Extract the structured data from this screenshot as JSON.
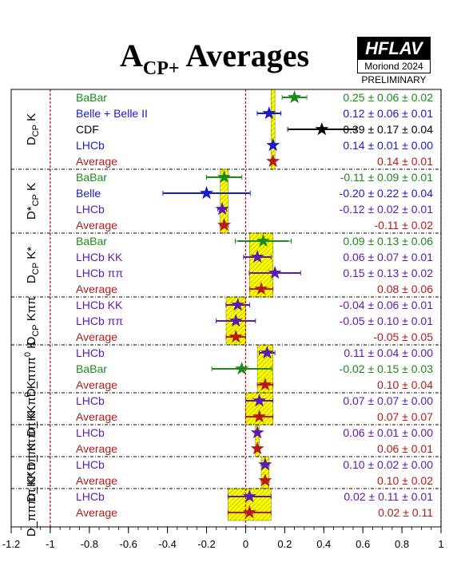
{
  "title": {
    "main": "A",
    "sub": "CP+",
    "rest": " Averages"
  },
  "logo": {
    "name": "HFLAV",
    "conference": "Moriond 2024",
    "status": "PRELIMINARY"
  },
  "colors": {
    "babar": "#1a8a1a",
    "belle": "#1a1acc",
    "cdf": "#000000",
    "lhcb": "#5a1ab4",
    "average": "#b41a1a",
    "band": "#ffff00",
    "band_hatch": "#8a8a00",
    "ref_line": "#cc0000"
  },
  "chart_data": {
    "type": "scatter",
    "xlim": [
      -1.2,
      1.0
    ],
    "xticks": [
      "-1.2",
      "-1",
      "-0.8",
      "-0.6",
      "-0.4",
      "-0.2",
      "0",
      "0.2",
      "0.4",
      "0.6",
      "0.8",
      "1"
    ],
    "reference_lines": [
      -1,
      0,
      1
    ],
    "groups": [
      {
        "label": "D",
        "label_sub": "CP",
        "label_rest": " K",
        "average": {
          "value": 0.14,
          "error": 0.01
        },
        "entries": [
          {
            "name": "BaBar",
            "color": "babar",
            "value": 0.25,
            "stat": 0.06,
            "syst": 0.02,
            "text": "0.25 ± 0.06 ± 0.02"
          },
          {
            "name": "Belle + Belle II",
            "color": "belle",
            "value": 0.12,
            "stat": 0.06,
            "syst": 0.01,
            "text": "0.12 ± 0.06 ± 0.01"
          },
          {
            "name": "CDF",
            "color": "cdf",
            "value": 0.39,
            "stat": 0.17,
            "syst": 0.04,
            "text": "0.39 ± 0.17 ± 0.04"
          },
          {
            "name": "LHCb",
            "color": "belle",
            "value": 0.14,
            "stat": 0.01,
            "syst": 0.0,
            "text": "0.14 ± 0.01 ± 0.00"
          },
          {
            "name": "Average",
            "color": "average",
            "value": 0.14,
            "stat": 0.01,
            "syst": null,
            "text": "0.14 ± 0.01"
          }
        ]
      },
      {
        "label": "D*",
        "label_sub": "CP",
        "label_rest": " K",
        "average": {
          "value": -0.11,
          "error": 0.02
        },
        "entries": [
          {
            "name": "BaBar",
            "color": "babar",
            "value": -0.11,
            "stat": 0.09,
            "syst": 0.01,
            "text": "-0.11 ± 0.09 ± 0.01"
          },
          {
            "name": "Belle",
            "color": "belle",
            "value": -0.2,
            "stat": 0.22,
            "syst": 0.04,
            "text": "-0.20 ± 0.22 ± 0.04"
          },
          {
            "name": "LHCb",
            "color": "lhcb",
            "value": -0.12,
            "stat": 0.02,
            "syst": 0.01,
            "text": "-0.12 ± 0.02 ± 0.01"
          },
          {
            "name": "Average",
            "color": "average",
            "value": -0.11,
            "stat": 0.02,
            "syst": null,
            "text": "-0.11 ± 0.02"
          }
        ]
      },
      {
        "label": "D",
        "label_sub": "CP",
        "label_rest": " K*",
        "average": {
          "value": 0.08,
          "error": 0.06
        },
        "entries": [
          {
            "name": "BaBar",
            "color": "babar",
            "value": 0.09,
            "stat": 0.13,
            "syst": 0.06,
            "text": "0.09 ± 0.13 ± 0.06"
          },
          {
            "name": "LHCb KK",
            "color": "lhcb",
            "value": 0.06,
            "stat": 0.07,
            "syst": 0.01,
            "text": "0.06 ± 0.07 ± 0.01"
          },
          {
            "name": "LHCb ππ",
            "color": "lhcb",
            "value": 0.15,
            "stat": 0.13,
            "syst": 0.02,
            "text": "0.15 ± 0.13 ± 0.02"
          },
          {
            "name": "Average",
            "color": "average",
            "value": 0.08,
            "stat": 0.06,
            "syst": null,
            "text": "0.08 ± 0.06"
          }
        ]
      },
      {
        "label": "D",
        "label_sub": "CP",
        "label_rest": " Kππ",
        "average": {
          "value": -0.05,
          "error": 0.05
        },
        "entries": [
          {
            "name": "LHCb KK",
            "color": "lhcb",
            "value": -0.04,
            "stat": 0.06,
            "syst": 0.01,
            "text": "-0.04 ± 0.06 ± 0.01"
          },
          {
            "name": "LHCb ππ",
            "color": "lhcb",
            "value": -0.05,
            "stat": 0.1,
            "syst": 0.01,
            "text": "-0.05 ± 0.10 ± 0.01"
          },
          {
            "name": "Average",
            "color": "average",
            "value": -0.05,
            "stat": 0.05,
            "syst": null,
            "text": "-0.05 ± 0.05"
          }
        ]
      },
      {
        "label": "D_πππ",
        "label_sup": "0",
        "label_rest": " K",
        "average": {
          "value": 0.1,
          "error": 0.04
        },
        "entries": [
          {
            "name": "LHCb",
            "color": "lhcb",
            "value": 0.11,
            "stat": 0.04,
            "syst": 0.0,
            "text": "0.11 ± 0.04 ± 0.00"
          },
          {
            "name": "BaBar",
            "color": "babar",
            "value": -0.02,
            "stat": 0.15,
            "syst": 0.03,
            "text": "-0.02 ± 0.15 ± 0.03"
          },
          {
            "name": "Average",
            "color": "average",
            "value": 0.1,
            "stat": 0.04,
            "syst": null,
            "text": "0.10 ± 0.04"
          }
        ]
      },
      {
        "label": "D_KKπ",
        "label_sup": "0",
        "label_rest": " K",
        "average": {
          "value": 0.07,
          "error": 0.07
        },
        "entries": [
          {
            "name": "LHCb",
            "color": "lhcb",
            "value": 0.07,
            "stat": 0.07,
            "syst": 0.0,
            "text": "0.07 ± 0.07 ± 0.00"
          },
          {
            "name": "Average",
            "color": "average",
            "value": 0.07,
            "stat": 0.07,
            "syst": null,
            "text": "0.07 ± 0.07"
          }
        ]
      },
      {
        "label": "D_ππππ K",
        "average": {
          "value": 0.06,
          "error": 0.01
        },
        "entries": [
          {
            "name": "LHCb",
            "color": "lhcb",
            "value": 0.06,
            "stat": 0.01,
            "syst": 0.0,
            "text": "0.06 ± 0.01 ± 0.00"
          },
          {
            "name": "Average",
            "color": "average",
            "value": 0.06,
            "stat": 0.01,
            "syst": null,
            "text": "0.06 ± 0.01"
          }
        ]
      },
      {
        "label": "D_KKππ K",
        "average": {
          "value": 0.1,
          "error": 0.02
        },
        "entries": [
          {
            "name": "LHCb",
            "color": "lhcb",
            "value": 0.1,
            "stat": 0.02,
            "syst": 0.0,
            "text": "0.10 ± 0.02 ± 0.00"
          },
          {
            "name": "Average",
            "color": "average",
            "value": 0.1,
            "stat": 0.02,
            "syst": null,
            "text": "0.10 ± 0.02"
          }
        ]
      },
      {
        "label": "D_ππππ K*",
        "average": {
          "value": 0.02,
          "error": 0.11
        },
        "entries": [
          {
            "name": "LHCb",
            "color": "lhcb",
            "value": 0.02,
            "stat": 0.11,
            "syst": 0.01,
            "text": "0.02 ± 0.11 ± 0.01"
          },
          {
            "name": "Average",
            "color": "average",
            "value": 0.02,
            "stat": 0.11,
            "syst": null,
            "text": "0.02 ± 0.11"
          }
        ]
      }
    ]
  }
}
